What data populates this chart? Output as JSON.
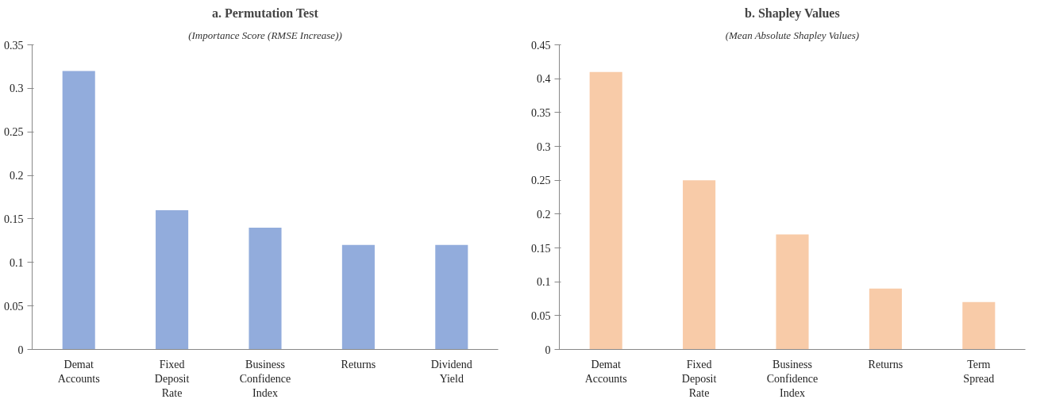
{
  "chart_data": [
    {
      "type": "bar",
      "title": "a. Permutation Test",
      "subtitle": "(Importance Score (RMSE Increase))",
      "categories": [
        "Demat Accounts",
        "Fixed Deposit Rate",
        "Business Confidence Index",
        "Returns",
        "Dividend Yield"
      ],
      "values": [
        0.32,
        0.16,
        0.14,
        0.12,
        0.12
      ],
      "color": "#92acdc",
      "ylim": [
        0,
        0.35
      ],
      "yticks": [
        0,
        0.05,
        0.1,
        0.15,
        0.2,
        0.25,
        0.3,
        0.35
      ],
      "grid": false
    },
    {
      "type": "bar",
      "title": "b. Shapley Values",
      "subtitle": "(Mean Absolute Shapley Values)",
      "categories": [
        "Demat Accounts",
        "Fixed Deposit Rate",
        "Business Confidence Index",
        "Returns",
        "Term Spread"
      ],
      "values": [
        0.41,
        0.25,
        0.17,
        0.09,
        0.07
      ],
      "color": "#f8cba8",
      "ylim": [
        0,
        0.45
      ],
      "yticks": [
        0,
        0.05,
        0.1,
        0.15,
        0.2,
        0.25,
        0.3,
        0.35,
        0.4,
        0.45
      ],
      "grid": false
    }
  ]
}
